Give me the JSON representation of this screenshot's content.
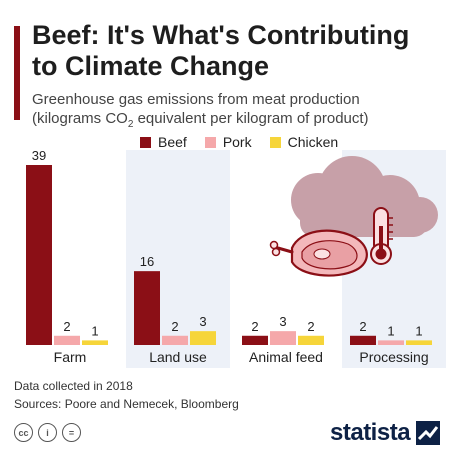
{
  "header": {
    "title": "Beef: It's What's Contributing to Climate Change",
    "subtitle_main": "Greenhouse gas emissions from meat production",
    "subtitle_unit_pre": "(kilograms CO",
    "subtitle_unit_sub": "2",
    "subtitle_unit_post": " equivalent per kilogram of product)"
  },
  "colors": {
    "accent": "#8b0f16",
    "panel": "#edf1f8",
    "brand": "#0d2145"
  },
  "chart_data": {
    "type": "bar",
    "categories": [
      "Farm",
      "Land use",
      "Animal feed",
      "Processing"
    ],
    "series": [
      {
        "name": "Beef",
        "color": "#8b0f16",
        "values": [
          39,
          16,
          2,
          2
        ]
      },
      {
        "name": "Pork",
        "color": "#f5a8aa",
        "values": [
          2,
          2,
          3,
          1
        ]
      },
      {
        "name": "Chicken",
        "color": "#f6d53a",
        "values": [
          1,
          3,
          2,
          1
        ]
      }
    ],
    "ylim": [
      0,
      39
    ],
    "legend": "top"
  },
  "illustration": {
    "icons": [
      "smoke-cloud-icon",
      "steak-icon",
      "thermometer-icon"
    ]
  },
  "footer": {
    "note": "Data collected in 2018",
    "sources": "Sources: Poore and Nemecek, Bloomberg",
    "license_icons": [
      "cc-icon",
      "by-icon",
      "nd-icon"
    ],
    "license_symbols": [
      "cc",
      "i",
      "="
    ],
    "brand": "statista"
  }
}
